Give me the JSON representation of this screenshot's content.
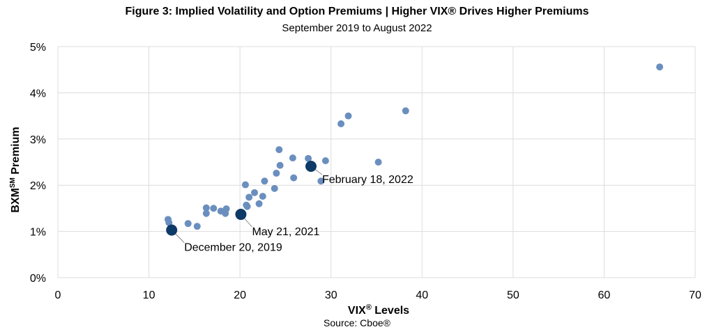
{
  "chart_data": {
    "type": "scatter",
    "title": "Figure 3: Implied Volatility and Option Premiums | Higher VIX® Drives Higher Premiums",
    "subtitle": "September 2019 to August 2022",
    "xlabel_main": "VIX",
    "xlabel_sup": "®",
    "xlabel_rest": " Levels",
    "ylabel_main": "BXM",
    "ylabel_sup": "SM",
    "ylabel_rest": " Premium",
    "source": "Source: Cboe®",
    "xlim": [
      0,
      70
    ],
    "ylim": [
      0,
      5
    ],
    "x_ticks": [
      0,
      10,
      20,
      30,
      40,
      50,
      60,
      70
    ],
    "y_ticks": [
      0,
      1,
      2,
      3,
      4,
      5
    ],
    "y_tick_labels": [
      "0%",
      "1%",
      "2%",
      "3%",
      "4%",
      "5%"
    ],
    "grid": true,
    "point_color": "#6a8fbf",
    "highlight_color": "#0d3a66",
    "points": [
      [
        12.1,
        1.26
      ],
      [
        12.2,
        1.19
      ],
      [
        14.3,
        1.17
      ],
      [
        15.3,
        1.11
      ],
      [
        16.3,
        1.51
      ],
      [
        16.3,
        1.39
      ],
      [
        17.1,
        1.5
      ],
      [
        17.9,
        1.44
      ],
      [
        18.4,
        1.39
      ],
      [
        18.5,
        1.49
      ],
      [
        20.6,
        2.01
      ],
      [
        20.7,
        1.57
      ],
      [
        20.8,
        1.54
      ],
      [
        21.0,
        1.74
      ],
      [
        21.6,
        1.84
      ],
      [
        22.1,
        1.6
      ],
      [
        22.5,
        1.76
      ],
      [
        22.7,
        2.09
      ],
      [
        23.8,
        1.93
      ],
      [
        24.0,
        2.26
      ],
      [
        24.3,
        2.77
      ],
      [
        24.4,
        2.43
      ],
      [
        25.8,
        2.59
      ],
      [
        25.9,
        2.16
      ],
      [
        27.5,
        2.58
      ],
      [
        28.9,
        2.09
      ],
      [
        29.4,
        2.53
      ],
      [
        31.1,
        3.33
      ],
      [
        31.9,
        3.5
      ],
      [
        35.2,
        2.5
      ],
      [
        38.2,
        3.61
      ],
      [
        66.1,
        4.56
      ]
    ],
    "highlighted": [
      {
        "x": 12.5,
        "y": 1.03,
        "label": "December 20, 2019"
      },
      {
        "x": 20.1,
        "y": 1.37,
        "label": "May 21, 2021"
      },
      {
        "x": 27.8,
        "y": 2.41,
        "label": "February 18, 2022"
      }
    ]
  }
}
